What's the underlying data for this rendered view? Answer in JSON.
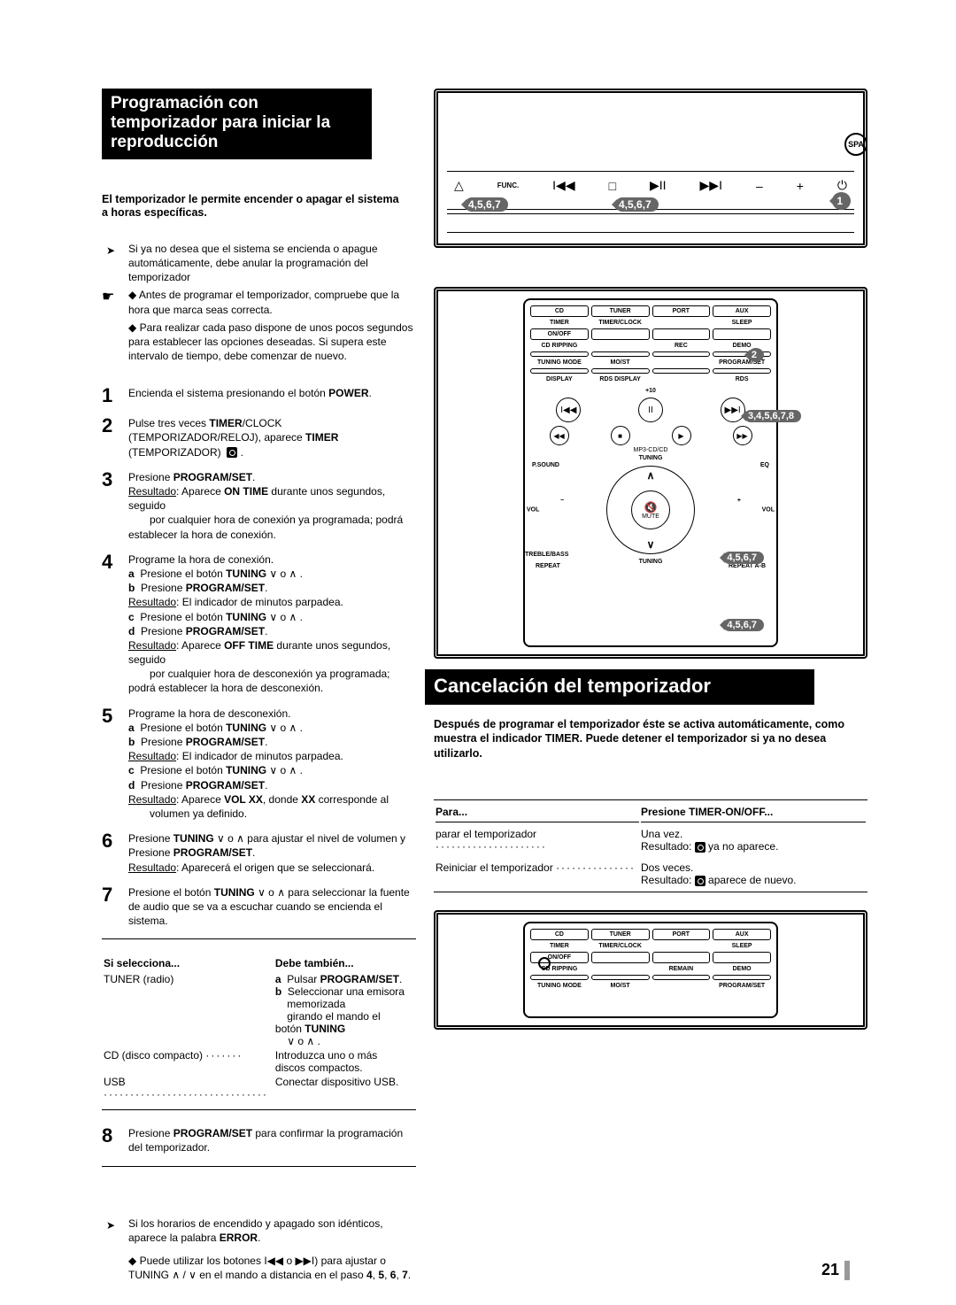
{
  "lang_badge": "SPA",
  "title": "Programación con temporizador para iniciar la reproducción",
  "intro_bold": "El temporizador le permite encender o apagar el sistema a horas específicas.",
  "notes": {
    "n1": "Si ya no desea que el sistema se encienda o apague automáticamente, debe anular la programación del temporizador",
    "n2": "◆ Antes de programar el temporizador, compruebe que la hora que marca seas correcta.",
    "n3": "◆ Para realizar cada paso dispone de unos pocos segundos para establecer las opciones deseadas. Si supera este intervalo de tiempo, debe comenzar de nuevo."
  },
  "steps": [
    {
      "n": "1",
      "html": "Encienda el sistema presionando el botón <b>POWER</b>."
    },
    {
      "n": "2",
      "html": "Pulse tres veces <b>TIMER</b>/CLOCK (TEMPORIZADOR/RELOJ), aparece <b>TIMER</b> (TEMPORIZADOR) &nbsp;<span class='clock-sq'></span> ."
    },
    {
      "n": "3",
      "html": "Presione <b>PROGRAM/SET</b>.<br><span class='ul'>Resultado</span>: Aparece <b>ON TIME</b> durante unos segundos, seguido<br><span class='sub-indent'>por cualquier hora de conexión ya programada; podrá establecer la hora de conexión.</span>"
    },
    {
      "n": "4",
      "html": "Programe la hora de conexión.<br><b>a</b>&nbsp; Presione el botón <b>TUNING</b> ∨ o ∧ .<br><b>b</b>&nbsp; Presione <b>PROGRAM/SET</b>.<br><span class='ul'>Resultado</span>: El indicador de minutos parpadea.<br><b>c</b>&nbsp; Presione el botón <b>TUNING</b> ∨ o ∧ .<br><b>d</b>&nbsp; Presione <b>PROGRAM/SET</b>.<br><span class='ul'>Resultado</span>: Aparece <b>OFF TIME</b> durante unos segundos, seguido<br><span class='sub-indent'>por cualquier hora de desconexión ya programada; podrá establecer la hora de desconexión.</span>"
    },
    {
      "n": "5",
      "html": "Programe la hora de desconexión.<br><b>a</b>&nbsp; Presione el botón <b>TUNING</b> ∨ o ∧ .<br><b>b</b>&nbsp; Presione <b>PROGRAM/SET</b>.<br><span class='ul'>Resultado</span>: El indicador de minutos parpadea.<br><b>c</b>&nbsp; Presione el botón <b>TUNING</b> ∨ o ∧ .<br><b>d</b>&nbsp; Presione <b>PROGRAM/SET</b>.<br><span class='ul'>Resultado</span>: Aparece <b>VOL XX</b>, donde <b>XX</b> corresponde al<br><span class='sub-indent'>volumen ya definido.</span>"
    },
    {
      "n": "6",
      "html": "Presione <b>TUNING</b> ∨ o ∧ para ajustar el nivel de volumen y Presione <b>PROGRAM/SET</b>.<br><span class='ul'>Resultado</span>: Aparecerá el origen que se seleccionará."
    },
    {
      "n": "7",
      "html": "Presione el botón <b>TUNING</b> ∨ o ∧ para seleccionar la fuente de audio que se va a escuchar cuando se encienda el sistema."
    }
  ],
  "si_table": {
    "h1": "Si selecciona...",
    "h2": "Debe también...",
    "rows": [
      {
        "c1": "TUNER (radio)",
        "c2": "<b>a</b>&nbsp; Pulsar <b>PROGRAM/SET</b>.<br><b>b</b>&nbsp; Seleccionar una emisora<br>&nbsp;&nbsp;&nbsp;&nbsp;memorizada<br>&nbsp;&nbsp;&nbsp;&nbsp;girando el mando el botón <b>TUNING</b><br>&nbsp;&nbsp;&nbsp;&nbsp;∨ o ∧ ."
      },
      {
        "c1": "CD (disco compacto) <span class='dots'>·······</span>",
        "c2": "Introduzca uno o más discos compactos."
      },
      {
        "c1": "USB <span class='dots'>·······························</span>",
        "c2": "Conectar dispositivo USB."
      }
    ]
  },
  "step8": {
    "n": "8",
    "html": "Presione <b>PROGRAM/SET</b> para confirmar la programación del temporizador."
  },
  "bottom_notes": {
    "b1": "Si los horarios de encendido y apagado son idénticos, aparece la palabra <b>ERROR</b>.",
    "b2": "◆ Puede utilizar los botones I◀◀ o ▶▶I) para ajustar o TUNING ∧ / ∨ en el mando a distancia en el paso <b>4</b>, <b>5</b>, <b>6</b>, <b>7</b>."
  },
  "unit": {
    "labels": [
      "△",
      "FUNC.",
      "I◀◀",
      "□",
      "▶II",
      "▶▶I",
      "–",
      "+",
      "⏻"
    ],
    "callouts": [
      "4,5,6,7",
      "4,5,6,7",
      "1"
    ]
  },
  "remote": {
    "row1": [
      "CD",
      "TUNER",
      "PORT",
      "AUX"
    ],
    "row2": [
      "TIMER",
      "TIMER/CLOCK",
      "",
      "SLEEP"
    ],
    "row3": [
      "ON/OFF",
      "",
      "",
      ""
    ],
    "row4": [
      "CD RIPPING",
      "",
      "REC",
      "DEMO"
    ],
    "row5": [
      "",
      "",
      "",
      ""
    ],
    "row6": [
      "TUNING MODE",
      "MO/ST",
      "",
      "PROGRAM/SET"
    ],
    "row7": [
      "",
      "",
      "",
      ""
    ],
    "row8": [
      "DISPLAY",
      "RDS DISPLAY",
      "",
      "RDS"
    ],
    "plus10": "+10",
    "trans": [
      "I◀◀",
      "II",
      "▶▶I",
      "◀◀",
      "■",
      "▶",
      "▶▶"
    ],
    "mp3": "MP3-CD/CD",
    "dpad": {
      "top": "TUNING",
      "left": "VOL",
      "right": "VOL",
      "bot": "TUNING",
      "center": "MUTE",
      "tl": "P.SOUND",
      "tr": "EQ",
      "bl": "TREBLE/BASS"
    },
    "bottom": [
      "REPEAT",
      "REPEAT A-B"
    ],
    "callouts": [
      "2",
      "3,4,5,6,7,8",
      "4,5,6,7",
      "4,5,6,7"
    ]
  },
  "cancel": {
    "title": "Cancelación del temporizador",
    "bold": "Después de programar el temporizador éste se activa automáticamente, como muestra el indicador TIMER. Puede detener el temporizador si ya no desea utilizarlo.",
    "h1": "Para...",
    "h2": "Presione TIMER-ON/OFF...",
    "rows": [
      {
        "c1": "parar el temporizador <span class='dots'>·····················</span>",
        "c2": "Una vez.<br><span class='ul'>Resultado</span>: <span class='clock-sq'></span> ya no aparece."
      },
      {
        "c1": "Reiniciar el temporizador <span class='dots'>···············</span>",
        "c2": "Dos veces.<br><span class='ul'>Resultado</span>: <span class='clock-sq'></span> aparece de nuevo."
      }
    ]
  },
  "remote2": {
    "row1": [
      "CD",
      "TUNER",
      "PORT",
      "AUX"
    ],
    "row2": [
      "TIMER",
      "TIMER/CLOCK",
      "",
      "SLEEP"
    ],
    "row3": [
      "ON/OFF",
      "",
      "",
      ""
    ],
    "row4": [
      "CD RIPPING",
      "",
      "REMAIN",
      "DEMO"
    ],
    "row6": [
      "TUNING MODE",
      "MO/ST",
      "",
      "PROGRAM/SET"
    ]
  },
  "page_number": "21",
  "colors": {
    "accent": "#666666",
    "black": "#000000"
  }
}
